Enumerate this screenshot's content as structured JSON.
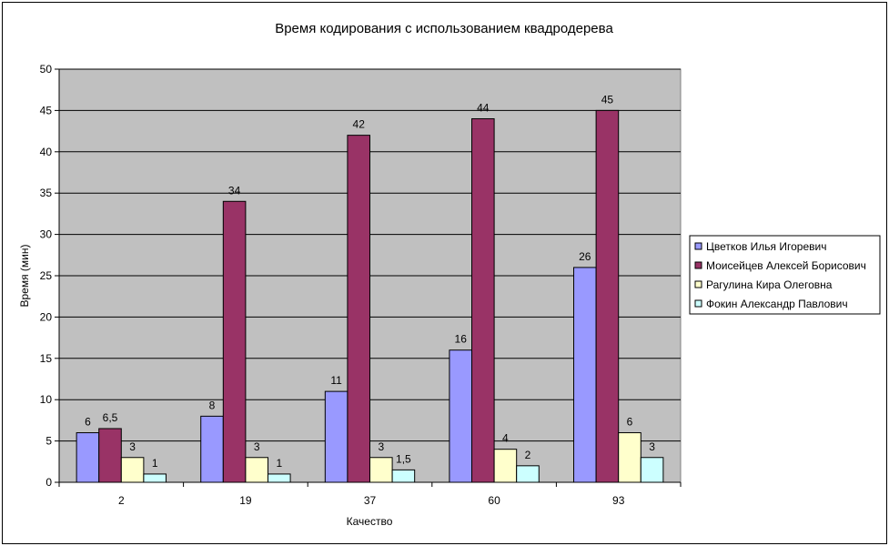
{
  "chart_data": {
    "type": "bar",
    "title": "Время кодирования с использованием квадродерева",
    "xlabel": "Качество",
    "ylabel": "Время (мин)",
    "categories": [
      "2",
      "19",
      "37",
      "60",
      "93"
    ],
    "ylim": [
      0,
      50
    ],
    "yticks": [
      0,
      5,
      10,
      15,
      20,
      25,
      30,
      35,
      40,
      45,
      50
    ],
    "grid": true,
    "legend_position": "right",
    "plot_background": "#c0c0c0",
    "series": [
      {
        "name": "Цветков Илья Игоревич",
        "color": "#9999ff",
        "values": [
          6,
          8,
          11,
          16,
          26
        ],
        "labels": [
          "6",
          "8",
          "11",
          "16",
          "26"
        ]
      },
      {
        "name": "Моисейцев Алексей Борисович",
        "color": "#993366",
        "values": [
          6.5,
          34,
          42,
          44,
          45
        ],
        "labels": [
          "6,5",
          "34",
          "42",
          "44",
          "45"
        ]
      },
      {
        "name": "Рагулина Кира Олеговна",
        "color": "#ffffcc",
        "values": [
          3,
          3,
          3,
          4,
          6
        ],
        "labels": [
          "3",
          "3",
          "3",
          "4",
          "6"
        ]
      },
      {
        "name": "Фокин Александр Павлович",
        "color": "#ccffff",
        "values": [
          1,
          1,
          1.5,
          2,
          3
        ],
        "labels": [
          "1",
          "1",
          "1,5",
          "2",
          "3"
        ]
      }
    ]
  }
}
